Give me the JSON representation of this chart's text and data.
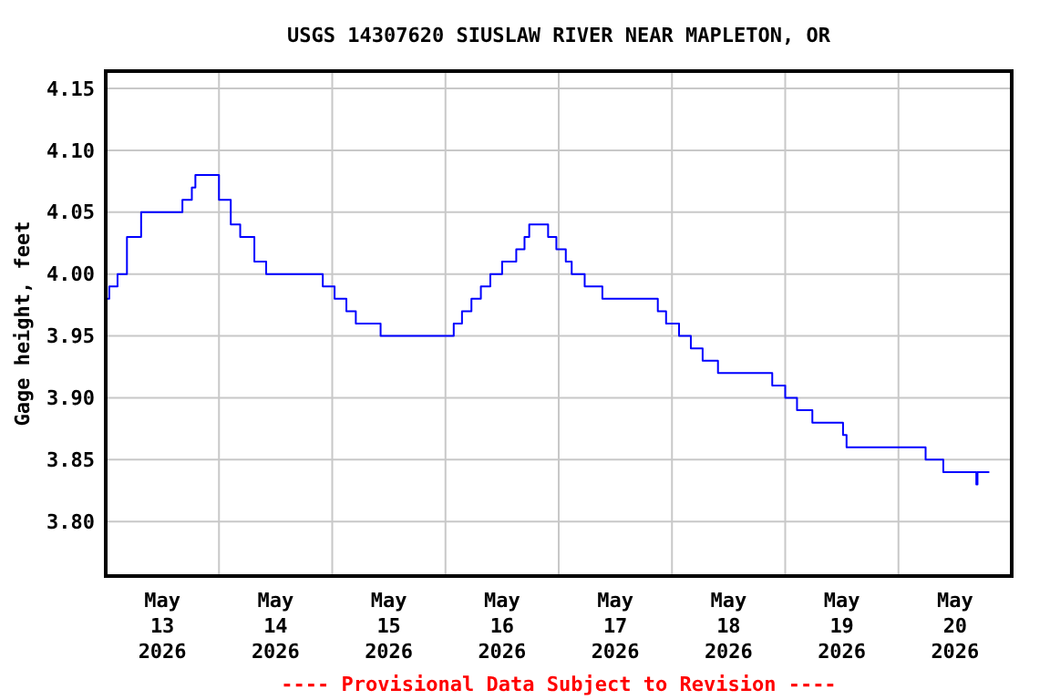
{
  "chart_data": {
    "type": "step",
    "title": "USGS 14307620 SIUSLAW RIVER NEAR MAPLETON, OR",
    "ylabel": "Gage height, feet",
    "annotations": [
      "---- Provisional Data Subject to Revision ----"
    ],
    "xlim": [
      "2026-05-13T00:00",
      "2026-05-21T00:00"
    ],
    "xticks": [
      {
        "value": "2026-05-13T12:00",
        "label": "May\n13\n2026"
      },
      {
        "value": "2026-05-14T00:00",
        "label": null
      },
      {
        "value": "2026-05-14T12:00",
        "label": "May\n14\n2026"
      },
      {
        "value": "2026-05-15T00:00",
        "label": null
      },
      {
        "value": "2026-05-15T12:00",
        "label": "May\n15\n2026"
      },
      {
        "value": "2026-05-16T00:00",
        "label": null
      },
      {
        "value": "2026-05-16T12:00",
        "label": "May\n16\n2026"
      },
      {
        "value": "2026-05-17T00:00",
        "label": null
      },
      {
        "value": "2026-05-17T12:00",
        "label": "May\n17\n2026"
      },
      {
        "value": "2026-05-18T00:00",
        "label": null
      },
      {
        "value": "2026-05-18T12:00",
        "label": "May\n18\n2026"
      },
      {
        "value": "2026-05-19T00:00",
        "label": null
      },
      {
        "value": "2026-05-19T12:00",
        "label": "May\n19\n2026"
      },
      {
        "value": "2026-05-20T00:00",
        "label": null
      },
      {
        "value": "2026-05-20T12:00",
        "label": "May\n20\n2026"
      }
    ],
    "ylim": [
      3.756,
      4.164
    ],
    "yticks": [
      {
        "value": 3.8,
        "label": "3.80"
      },
      {
        "value": 3.85,
        "label": "3.85"
      },
      {
        "value": 3.9,
        "label": "3.90"
      },
      {
        "value": 3.95,
        "label": "3.95"
      },
      {
        "value": 4.0,
        "label": "4.00"
      },
      {
        "value": 4.05,
        "label": "4.05"
      },
      {
        "value": 4.1,
        "label": "4.10"
      },
      {
        "value": 4.15,
        "label": "4.15"
      }
    ],
    "grid": true,
    "marker": "none",
    "line_style": "solid",
    "series": [
      {
        "color": "#0000ff",
        "x": [
          "2026-05-13T00:00",
          "2026-05-13T00:45",
          "2026-05-13T02:30",
          "2026-05-13T04:30",
          "2026-05-13T07:30",
          "2026-05-13T15:00",
          "2026-05-13T16:15",
          "2026-05-13T18:15",
          "2026-05-13T19:00",
          "2026-05-13T22:30",
          "2026-05-14T00:00",
          "2026-05-14T02:30",
          "2026-05-14T04:30",
          "2026-05-14T07:30",
          "2026-05-14T10:00",
          "2026-05-14T15:30",
          "2026-05-14T18:00",
          "2026-05-14T22:00",
          "2026-05-15T00:30",
          "2026-05-15T03:00",
          "2026-05-15T05:00",
          "2026-05-15T10:15",
          "2026-05-15T22:30",
          "2026-05-16T01:45",
          "2026-05-16T03:30",
          "2026-05-16T05:30",
          "2026-05-16T07:30",
          "2026-05-16T09:30",
          "2026-05-16T12:00",
          "2026-05-16T15:00",
          "2026-05-16T16:45",
          "2026-05-16T17:45",
          "2026-05-16T21:00",
          "2026-05-16T21:45",
          "2026-05-16T23:30",
          "2026-05-17T01:30",
          "2026-05-17T02:45",
          "2026-05-17T05:30",
          "2026-05-17T09:15",
          "2026-05-17T18:15",
          "2026-05-17T21:00",
          "2026-05-17T22:45",
          "2026-05-18T01:30",
          "2026-05-18T04:00",
          "2026-05-18T06:30",
          "2026-05-18T09:45",
          "2026-05-18T16:15",
          "2026-05-18T21:15",
          "2026-05-19T00:00",
          "2026-05-19T02:30",
          "2026-05-19T05:45",
          "2026-05-19T12:15",
          "2026-05-19T13:00",
          "2026-05-19T23:15",
          "2026-05-20T05:45",
          "2026-05-20T09:30",
          "2026-05-20T16:30",
          "2026-05-20T16:45",
          "2026-05-20T19:15"
        ],
        "values": [
          3.98,
          3.99,
          4.0,
          4.03,
          4.05,
          4.05,
          4.06,
          4.07,
          4.08,
          4.08,
          4.06,
          4.04,
          4.03,
          4.01,
          4.0,
          4.0,
          4.0,
          3.99,
          3.98,
          3.97,
          3.96,
          3.95,
          3.95,
          3.96,
          3.97,
          3.98,
          3.99,
          4.0,
          4.01,
          4.02,
          4.03,
          4.04,
          4.04,
          4.03,
          4.02,
          4.01,
          4.0,
          3.99,
          3.98,
          3.98,
          3.97,
          3.96,
          3.95,
          3.94,
          3.93,
          3.92,
          3.92,
          3.91,
          3.9,
          3.89,
          3.88,
          3.87,
          3.86,
          3.86,
          3.85,
          3.84,
          3.83,
          3.84,
          3.84
        ]
      }
    ]
  }
}
